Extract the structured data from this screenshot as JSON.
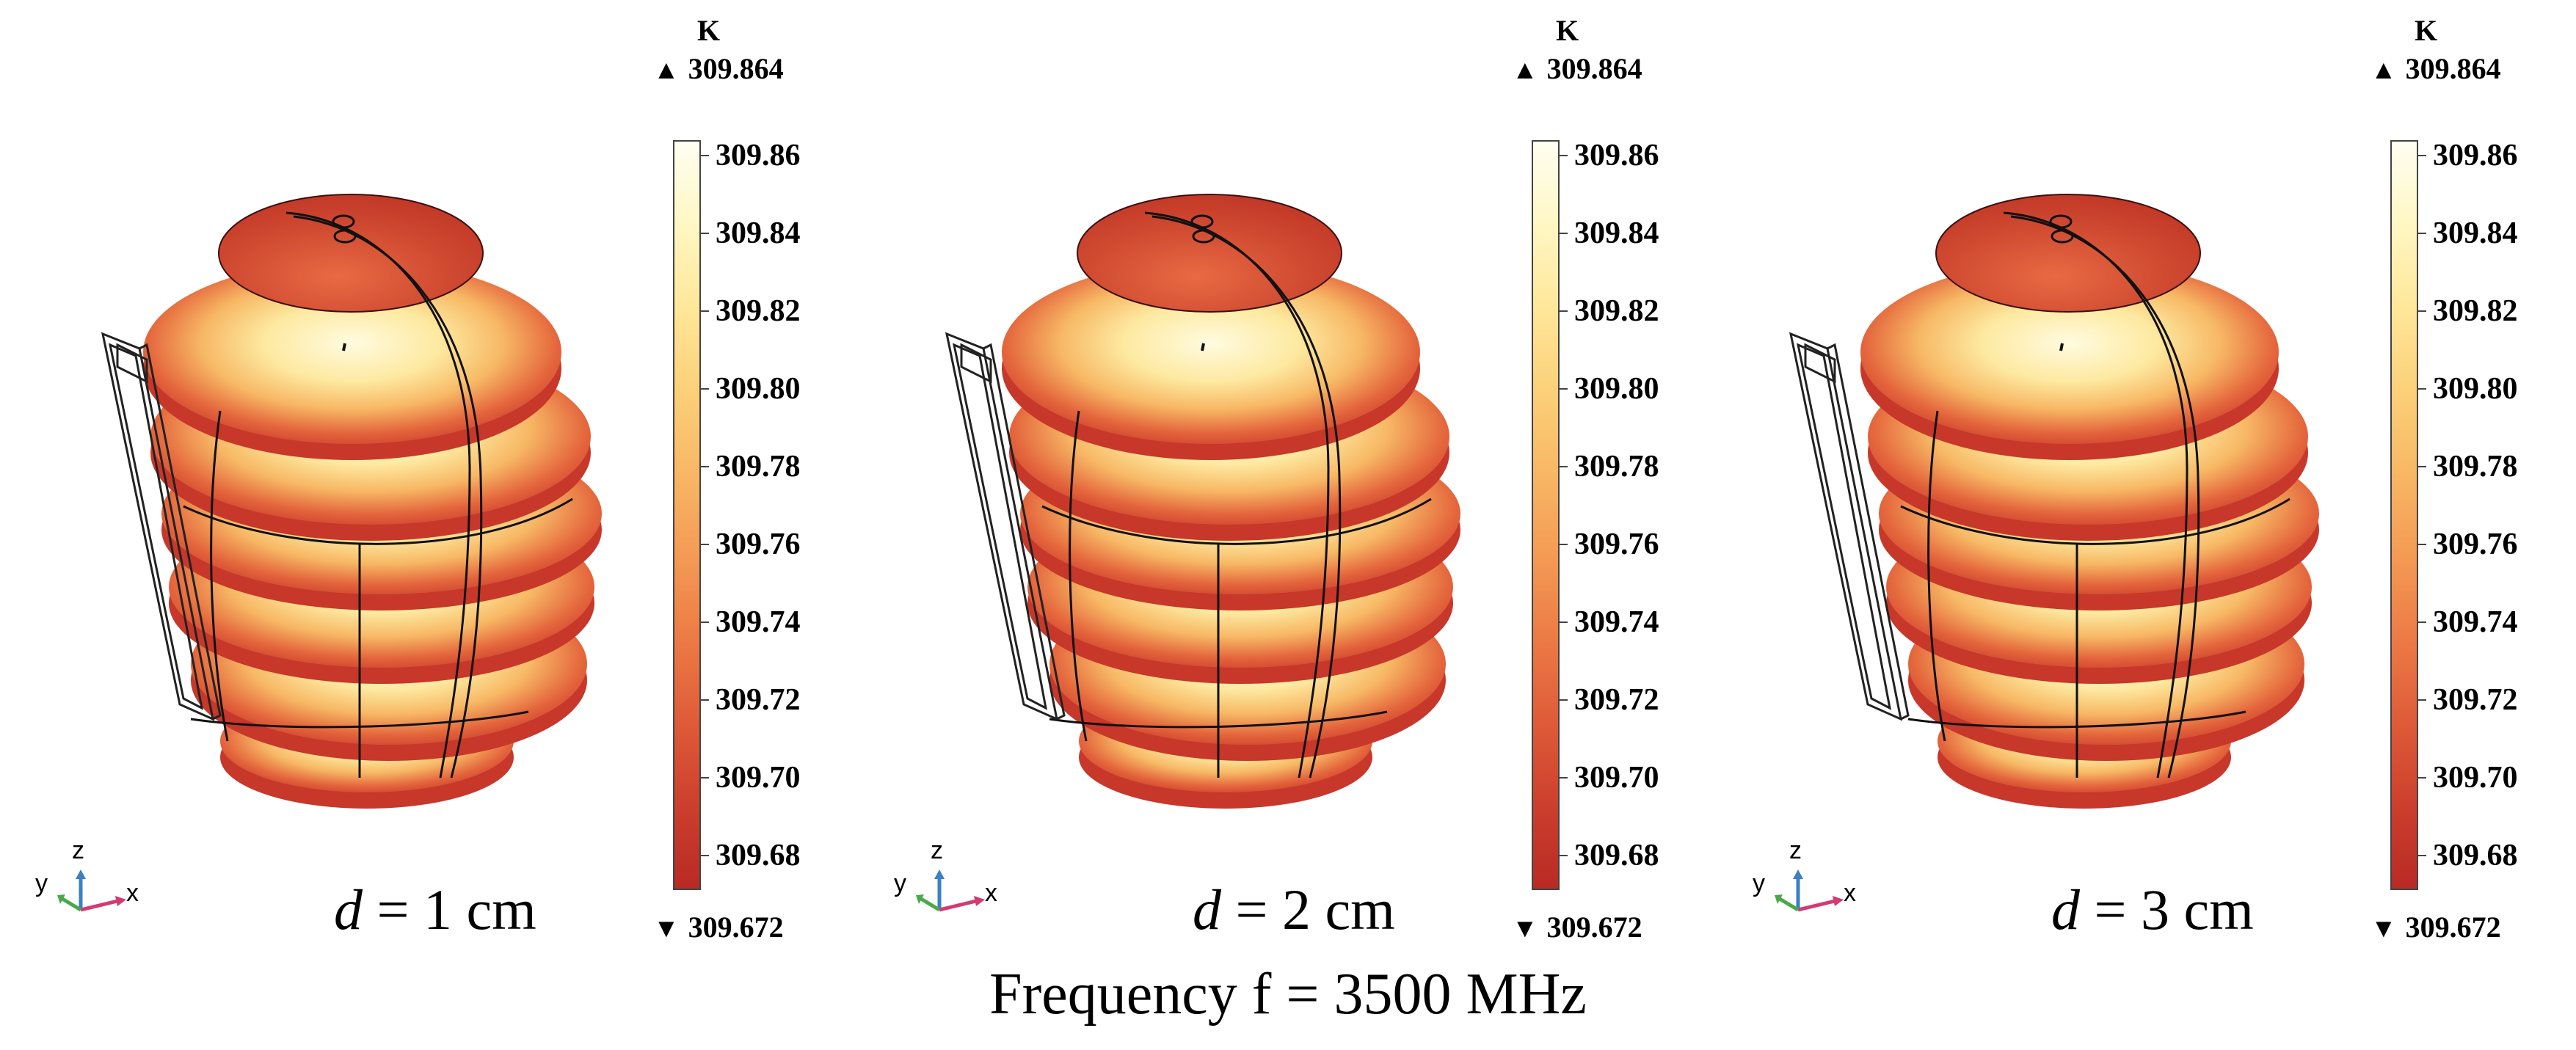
{
  "panels": [
    {
      "d_value": "1",
      "d_unit": "cm"
    },
    {
      "d_value": "2",
      "d_unit": "cm"
    },
    {
      "d_value": "3",
      "d_unit": "cm"
    }
  ],
  "d_symbol": "d",
  "d_eq": " = ",
  "colorbar": {
    "unit": "K",
    "max_label": "309.864",
    "min_label": "309.672",
    "ticks": [
      "309.86",
      "309.84",
      "309.82",
      "309.80",
      "309.78",
      "309.76",
      "309.74",
      "309.72",
      "309.70",
      "309.68"
    ],
    "colors": [
      "#fffef2",
      "#fff7c4",
      "#ffe79a",
      "#fcd079",
      "#f8b764",
      "#f49a54",
      "#ec7a45",
      "#de5b38",
      "#cc3f2d",
      "#b82a24"
    ]
  },
  "axes": {
    "x": "x",
    "y": "y",
    "z": "z"
  },
  "footer": "Frequency f = 3500 MHz"
}
